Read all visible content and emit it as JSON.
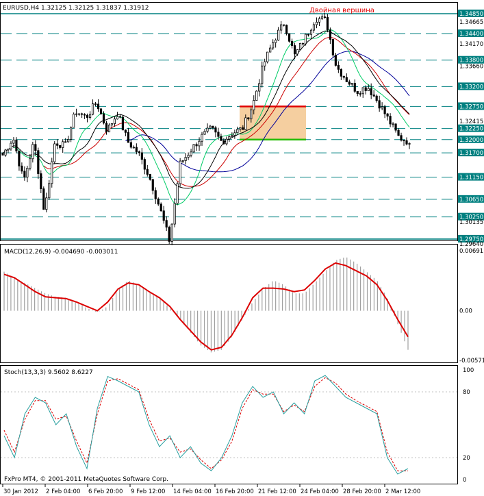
{
  "window": {
    "header": "EURUSD,H4  1.32125 1.32125 1.31837 1.31912",
    "footer": "FxPro MT4, © 2001-2011 MetaQuotes Software Corp."
  },
  "annotation": {
    "text": "Двойная вершина",
    "color": "#e00000"
  },
  "colors": {
    "grid": "#008080",
    "price": "#000000",
    "ma_fast": "#00cc66",
    "ma_mid": "#cc0000",
    "ma_slow": "#000099",
    "ma_black": "#000000",
    "macd_hist": "#a0a0a0",
    "macd_signal": "#dd0000",
    "stoch_main": "#2aa0a0",
    "stoch_signal": "#dd0000",
    "box_fill": "#f5cfa0"
  },
  "chart_data": [
    {
      "type": "candlestick",
      "name": "price",
      "ylim": [
        1.2964,
        1.3485
      ],
      "levels": [
        1.3485,
        1.344,
        1.338,
        1.332,
        1.3275,
        1.3225,
        1.32,
        1.317,
        1.3115,
        1.3065,
        1.3025,
        1.2975
      ],
      "level_labels": [
        "1.34850",
        "1.34400",
        "1.33800",
        "1.33200",
        "1.32750",
        "1.32250",
        "1.32000",
        "1.31700",
        "1.31150",
        "1.30650",
        "1.30250",
        "1.29750"
      ],
      "axis_ticks": [
        "1.34665",
        "1.34170",
        "1.33660",
        "1.32415",
        "1.30135",
        "1.29640"
      ],
      "x_labels": [
        "30 Jan 2012",
        "2 Feb 04:00",
        "6 Feb 20:00",
        "9 Feb 12:00",
        "14 Feb 04:00",
        "16 Feb 20:00",
        "21 Feb 12:00",
        "24 Feb 04:00",
        "28 Feb 20:00",
        "2 Mar 12:00"
      ],
      "anchors": [
        1.3165,
        1.3205,
        1.3105,
        1.3195,
        1.3035,
        1.3195,
        1.3185,
        1.3265,
        1.325,
        1.3285,
        1.322,
        1.326,
        1.3195,
        1.317,
        1.312,
        1.305,
        1.297,
        1.3145,
        1.3175,
        1.3205,
        1.3225,
        1.3195,
        1.3215,
        1.3225,
        1.328,
        1.337,
        1.3425,
        1.3465,
        1.339,
        1.343,
        1.3475,
        1.347,
        1.3365,
        1.3335,
        1.331,
        1.332,
        1.3285,
        1.3245,
        1.3205,
        1.3195
      ],
      "box": {
        "x0": 350,
        "x1": 447,
        "top": 1.3275,
        "bottom": 1.32
      },
      "current_price": 1.31912
    },
    {
      "type": "line",
      "name": "macd",
      "title": "MACD(12,26,9) -0.004690 -0.003011",
      "ylim": [
        -0.00571,
        0.00691
      ],
      "ticks": [
        "0.00691",
        "0.00",
        "-0.00571"
      ],
      "histogram": [
        0.0045,
        0.0038,
        0.0032,
        0.0026,
        0.002,
        0.0016,
        0.0015,
        0.001,
        0.0003,
        -0.0002,
        0.0005,
        0.0025,
        0.0035,
        0.003,
        0.0022,
        0.0015,
        0.0003,
        -0.001,
        -0.0025,
        -0.004,
        -0.0048,
        -0.0045,
        -0.003,
        -0.001,
        0.001,
        0.0025,
        0.0035,
        0.003,
        0.002,
        0.002,
        0.0032,
        0.0045,
        0.0058,
        0.0062,
        0.0055,
        0.0045,
        0.0035,
        0.0015,
        -0.0015,
        -0.0045
      ],
      "signal": [
        0.0042,
        0.0038,
        0.003,
        0.0022,
        0.0016,
        0.0015,
        0.0014,
        0.001,
        0.0005,
        0.0,
        0.001,
        0.0025,
        0.0032,
        0.003,
        0.0022,
        0.0015,
        0.0005,
        -0.001,
        -0.0023,
        -0.0036,
        -0.0045,
        -0.0042,
        -0.0028,
        -0.0008,
        0.0015,
        0.0026,
        0.0026,
        0.0025,
        0.0022,
        0.0024,
        0.0035,
        0.0048,
        0.0055,
        0.0052,
        0.0046,
        0.004,
        0.003,
        0.0012,
        -0.001,
        -0.003
      ]
    },
    {
      "type": "line",
      "name": "stochastic",
      "title": "Stoch(13,3,3) 9.5602 8.6227",
      "ylim": [
        0,
        100
      ],
      "ticks": [
        "100",
        "80",
        "20",
        "0"
      ],
      "main": [
        40,
        20,
        60,
        75,
        70,
        50,
        60,
        30,
        10,
        65,
        94,
        90,
        85,
        80,
        50,
        30,
        40,
        20,
        30,
        15,
        8,
        20,
        40,
        70,
        85,
        75,
        80,
        60,
        70,
        60,
        90,
        95,
        85,
        75,
        70,
        65,
        60,
        20,
        5,
        10
      ],
      "signal": [
        45,
        25,
        55,
        72,
        72,
        55,
        58,
        35,
        15,
        60,
        90,
        92,
        87,
        82,
        55,
        35,
        38,
        25,
        28,
        18,
        10,
        18,
        35,
        65,
        82,
        78,
        78,
        62,
        68,
        62,
        85,
        93,
        88,
        78,
        72,
        67,
        62,
        25,
        8,
        8
      ]
    }
  ]
}
